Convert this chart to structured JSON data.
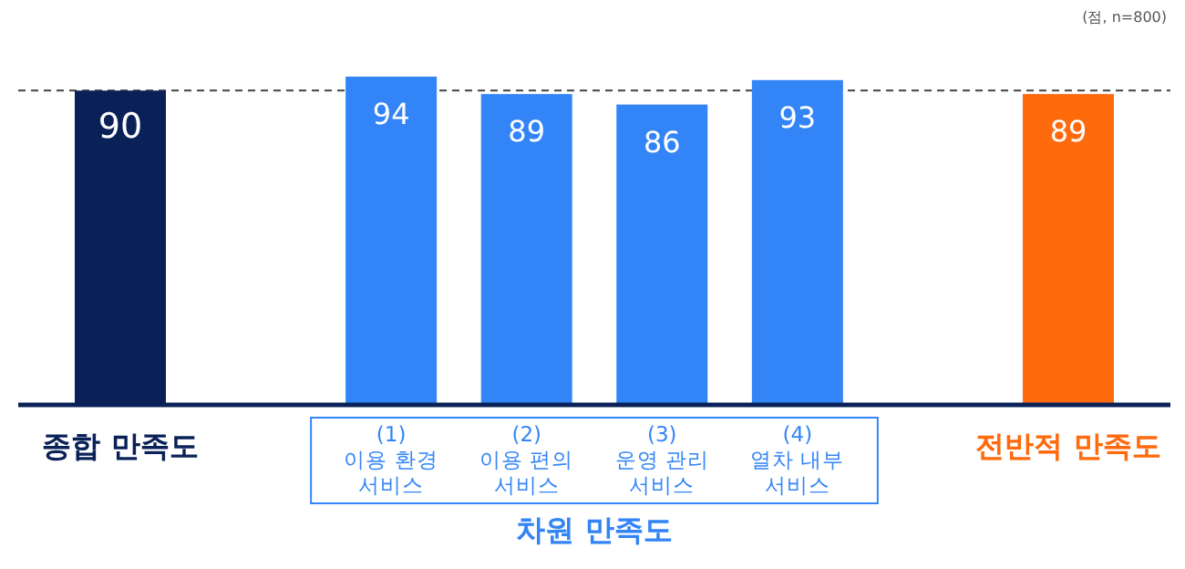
{
  "chart_data": {
    "type": "bar",
    "categories": [
      "종합 만족도",
      "(1)\n이용 환경\n서비스",
      "(2)\n이용 편의\n서비스",
      "(3)\n운영 관리\n서비스",
      "(4)\n열차 내부\n서비스",
      "전반적 만족도"
    ],
    "values": [
      90,
      94,
      89,
      86,
      93,
      89
    ],
    "colors": [
      "#0a2158",
      "#3385f7",
      "#3385f7",
      "#3385f7",
      "#3385f7",
      "#ff6a0d"
    ],
    "data_labels": true,
    "ref_lines": [
      {
        "axis": "y",
        "value": 90,
        "label": null,
        "color": "#444444",
        "line_style": "dashed"
      }
    ],
    "annotations": [
      "(점, n=800)",
      "차원 만족도"
    ]
  }
}
